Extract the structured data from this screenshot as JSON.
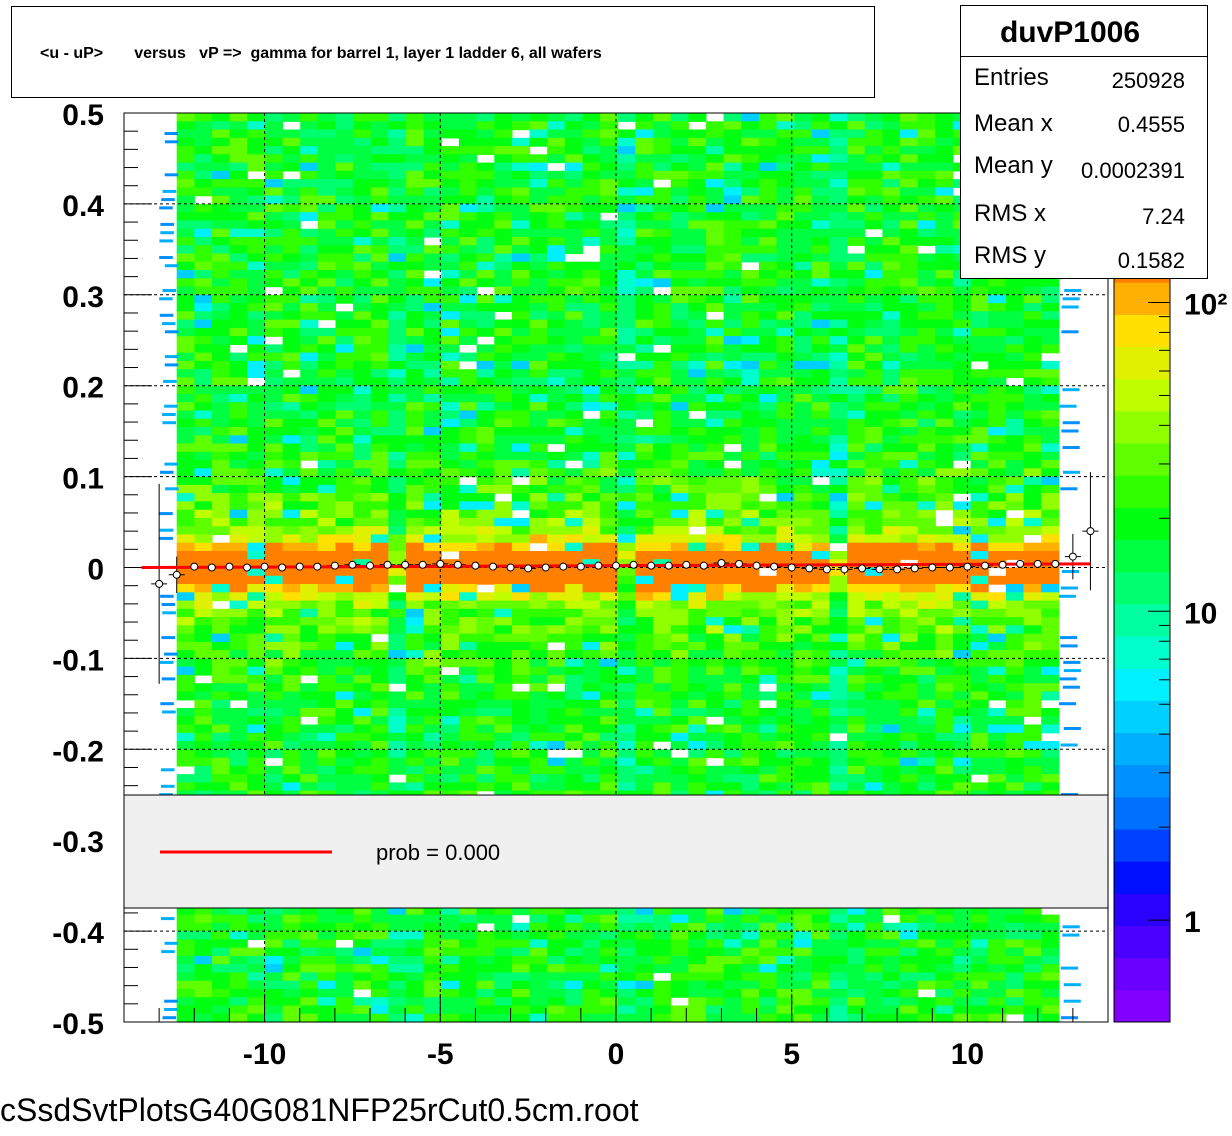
{
  "chart_data": {
    "type": "heatmap",
    "title": "<u - uP>       versus   vP =>  gamma for barrel 1, layer 1 ladder 6, all wafers",
    "xlabel": "",
    "ylabel": "",
    "xlim": [
      -14,
      14
    ],
    "ylim": [
      -0.5,
      0.5
    ],
    "x_ticks": [
      -10,
      -5,
      0,
      5,
      10
    ],
    "x_tick_labels": [
      "-10",
      "-5",
      "0",
      "5",
      "10"
    ],
    "y_ticks": [
      -0.5,
      -0.4,
      -0.3,
      -0.2,
      -0.1,
      0,
      0.1,
      0.2,
      0.3,
      0.4,
      0.5
    ],
    "y_tick_labels": [
      "-0.5",
      "-0.4",
      "-0.3",
      "-0.2",
      "-0.1",
      "0",
      "0.1",
      "0.2",
      "0.3",
      "0.4",
      "0.5"
    ],
    "grid": true,
    "colorbar": {
      "scale": "log",
      "labels": [
        {
          "value": 1,
          "text": "1"
        },
        {
          "value": 10,
          "text": "10"
        },
        {
          "value": 100,
          "text": "10²"
        }
      ],
      "colors": [
        "#7f00ff",
        "#6a00ff",
        "#4b00ff",
        "#2a00ff",
        "#0010ff",
        "#0040ff",
        "#0070ff",
        "#0090ff",
        "#00b0ff",
        "#00d0ff",
        "#00f0ff",
        "#00ffcc",
        "#00ffa0",
        "#00ff70",
        "#00ff40",
        "#00ff10",
        "#30ff00",
        "#60ff00",
        "#90ff00",
        "#c0ff00",
        "#e0f000",
        "#ffe000",
        "#ffb000",
        "#ff8000"
      ]
    },
    "profile": {
      "marker_color": "#ff0000",
      "x": [
        -13.0,
        -12.5,
        -12.0,
        -11.5,
        -11.0,
        -10.5,
        -10.0,
        -9.5,
        -9.0,
        -8.5,
        -8.0,
        -7.5,
        -7.0,
        -6.5,
        -6.0,
        -5.5,
        -5.0,
        -4.5,
        -4.0,
        -3.5,
        -3.0,
        -2.5,
        -2.0,
        -1.5,
        -1.0,
        -0.5,
        0.0,
        0.5,
        1.0,
        1.5,
        2.0,
        2.5,
        3.0,
        3.5,
        4.0,
        4.5,
        5.0,
        5.5,
        6.0,
        6.5,
        7.0,
        7.5,
        8.0,
        8.5,
        9.0,
        9.5,
        10.0,
        10.5,
        11.0,
        11.5,
        12.0,
        12.5,
        13.0,
        13.5
      ],
      "y": [
        -0.018,
        -0.008,
        0.001,
        0.0,
        0.001,
        0.0,
        0.001,
        0.0,
        0.001,
        0.001,
        0.002,
        0.003,
        0.002,
        0.003,
        0.003,
        0.003,
        0.004,
        0.003,
        0.002,
        0.001,
        0.0,
        -0.001,
        0.0,
        0.001,
        0.001,
        0.002,
        0.002,
        0.003,
        0.002,
        0.002,
        0.003,
        0.002,
        0.005,
        0.004,
        0.002,
        0.001,
        0.0,
        -0.001,
        -0.002,
        -0.002,
        -0.001,
        -0.002,
        -0.002,
        -0.001,
        0.0,
        0.0,
        0.001,
        0.002,
        0.003,
        0.004,
        0.004,
        0.004,
        0.012,
        0.04
      ],
      "y_err": [
        0.11,
        0.02,
        0.004,
        0.003,
        0.003,
        0.003,
        0.003,
        0.003,
        0.003,
        0.003,
        0.003,
        0.003,
        0.003,
        0.003,
        0.006,
        0.003,
        0.003,
        0.003,
        0.003,
        0.003,
        0.003,
        0.003,
        0.003,
        0.003,
        0.003,
        0.003,
        0.006,
        0.003,
        0.003,
        0.003,
        0.003,
        0.003,
        0.003,
        0.003,
        0.003,
        0.003,
        0.003,
        0.003,
        0.003,
        0.006,
        0.003,
        0.003,
        0.003,
        0.003,
        0.003,
        0.003,
        0.003,
        0.003,
        0.003,
        0.003,
        0.003,
        0.003,
        0.025,
        0.065
      ]
    },
    "fit_line": {
      "color": "#ff0000",
      "x": [
        -13.5,
        13.5
      ],
      "y": [
        0.0,
        0.004
      ]
    },
    "legend": {
      "position": "lower-center",
      "entries": [
        {
          "label": "prob = 0.000",
          "color": "#ff0000"
        }
      ]
    },
    "stats": {
      "name": "duvP1006",
      "rows": [
        {
          "label": "Entries",
          "value": "250928"
        },
        {
          "label": "Mean x",
          "value": "0.4555"
        },
        {
          "label": "Mean y",
          "value": "0.0002391"
        },
        {
          "label": "RMS x",
          "value": "7.24"
        },
        {
          "label": "RMS y",
          "value": "0.1582"
        }
      ]
    },
    "file_label": "cSsdSvtPlotsG40G081NFP25rCut0.5cm.root"
  }
}
